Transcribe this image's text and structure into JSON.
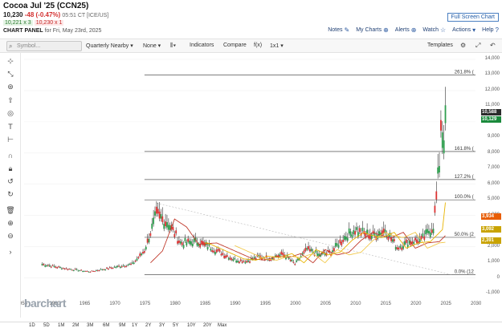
{
  "header": {
    "title": "Cocoa Jul '25 (CCN25)",
    "price": "10,230",
    "change": "-48 (-0.47%)",
    "time": "05:51 CT [ICE/US]",
    "bid": "10,221 x 3",
    "ask": "10,230 x 1",
    "panel_label": "CHART PANEL",
    "panel_date": "for Fri, May 23rd, 2025",
    "fullscreen": "Full Screen Chart",
    "links": [
      "Notes",
      "My Charts",
      "Alerts",
      "Watch",
      "Actions",
      "Help"
    ]
  },
  "toolbar": {
    "search_placeholder": "Symbol...",
    "period": "Quarterly Nearby",
    "overlay": "None",
    "indicators": "Indicators",
    "compare": "Compare",
    "fx": "f(x)",
    "layout": "1x1",
    "templates": "Templates"
  },
  "colors": {
    "accent": "#1f5aa6",
    "tag_green": "#1a8a3c",
    "tag_orange": "#e85d04",
    "tag_yellow": "#c9a300",
    "tag_dark": "#2b2b2b"
  },
  "y_axis": {
    "labels": [
      "14,000",
      "13,000",
      "12,000",
      "11,000",
      "9,000",
      "8,000",
      "7,000",
      "6,000",
      "5,000",
      "4,000",
      "3,000",
      "2,000",
      "1,000",
      "0",
      "-1,000"
    ],
    "tags": [
      "10,588",
      "10,129",
      "3,934",
      "3,092",
      "2,391"
    ]
  },
  "x_axis": {
    "labels": [
      "955",
      "1960",
      "1965",
      "1970",
      "1975",
      "1980",
      "1985",
      "1990",
      "1995",
      "2000",
      "2005",
      "2010",
      "2015",
      "2020",
      "2025",
      "2030"
    ]
  },
  "fib_levels": [
    "261.8% (",
    "161.8% (",
    "127.2% (",
    "100.0% (",
    "50.0% (2",
    "0.0% (12"
  ],
  "watermark": "barchart",
  "bottom_bar": [
    "1D",
    "5D",
    "1M",
    "2M",
    "3M",
    "6M",
    "9M",
    "1Y",
    "2Y",
    "3Y",
    "5Y",
    "10Y",
    "20Y",
    "Max"
  ],
  "chart_data": {
    "type": "candlestick",
    "x_range": [
      1955,
      2030
    ],
    "ylim": [
      -1000,
      14000
    ],
    "series": [
      {
        "name": "",
        "x": [
          1958,
          1962,
          1966,
          1970,
          1973,
          1975,
          1977,
          1979,
          1981,
          1984,
          1986,
          1988,
          1990,
          1992,
          1994,
          1996,
          1998,
          2000,
          2002,
          2004,
          2006,
          2008,
          2010,
          2011,
          2013,
          2015,
          2017,
          2019,
          2021,
          2023,
          2024,
          2024.3,
          2024.6,
          2025
        ],
        "values": [
          900,
          600,
          400,
          700,
          900,
          1800,
          4200,
          3600,
          2300,
          2400,
          2000,
          1600,
          1200,
          1100,
          1400,
          1300,
          1600,
          900,
          1900,
          1500,
          1700,
          2600,
          3200,
          3000,
          2800,
          3200,
          2000,
          2400,
          2500,
          3400,
          7500,
          11000,
          9000,
          10200
        ]
      }
    ]
  }
}
